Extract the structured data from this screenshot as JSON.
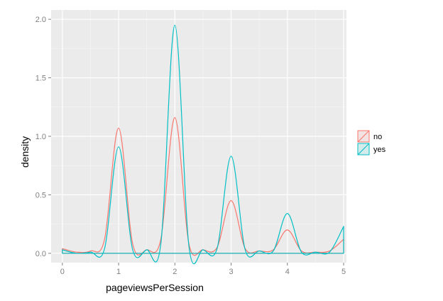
{
  "chart_data": {
    "type": "area",
    "xlabel": "pageviewsPerSession",
    "ylabel": "density",
    "xlim": [
      -0.2,
      5.05
    ],
    "ylim": [
      -0.08,
      2.08
    ],
    "x_ticks": [
      0,
      1,
      2,
      3,
      4,
      5
    ],
    "x_tick_labels": [
      "0",
      "1",
      "2",
      "3",
      "4",
      "5"
    ],
    "y_ticks": [
      0.0,
      0.5,
      1.0,
      1.5,
      2.0
    ],
    "y_tick_labels": [
      "0.0",
      "0.5",
      "1.0",
      "1.5",
      "2.0"
    ],
    "grid": true,
    "legend_position": "right",
    "x": [
      0,
      0.25,
      0.5,
      0.75,
      1,
      1.25,
      1.5,
      1.75,
      2,
      2.25,
      2.5,
      2.75,
      3,
      3.25,
      3.5,
      3.75,
      4,
      4.25,
      4.5,
      4.75,
      5
    ],
    "series": [
      {
        "name": "no",
        "color": "#F8766D",
        "values": [
          0.04,
          0.01,
          0.02,
          0.12,
          1.07,
          0.08,
          0.03,
          0.12,
          1.16,
          0.08,
          0.03,
          0.05,
          0.45,
          0.04,
          0.02,
          0.03,
          0.2,
          0.02,
          0.01,
          0.02,
          0.12
        ]
      },
      {
        "name": "yes",
        "color": "#00BFC4",
        "values": [
          0.03,
          0.0,
          0.01,
          0.04,
          0.91,
          0.03,
          0.03,
          0.08,
          1.95,
          0.06,
          0.03,
          0.04,
          0.83,
          0.03,
          0.02,
          0.02,
          0.34,
          0.01,
          0.01,
          0.01,
          0.23
        ]
      }
    ]
  }
}
